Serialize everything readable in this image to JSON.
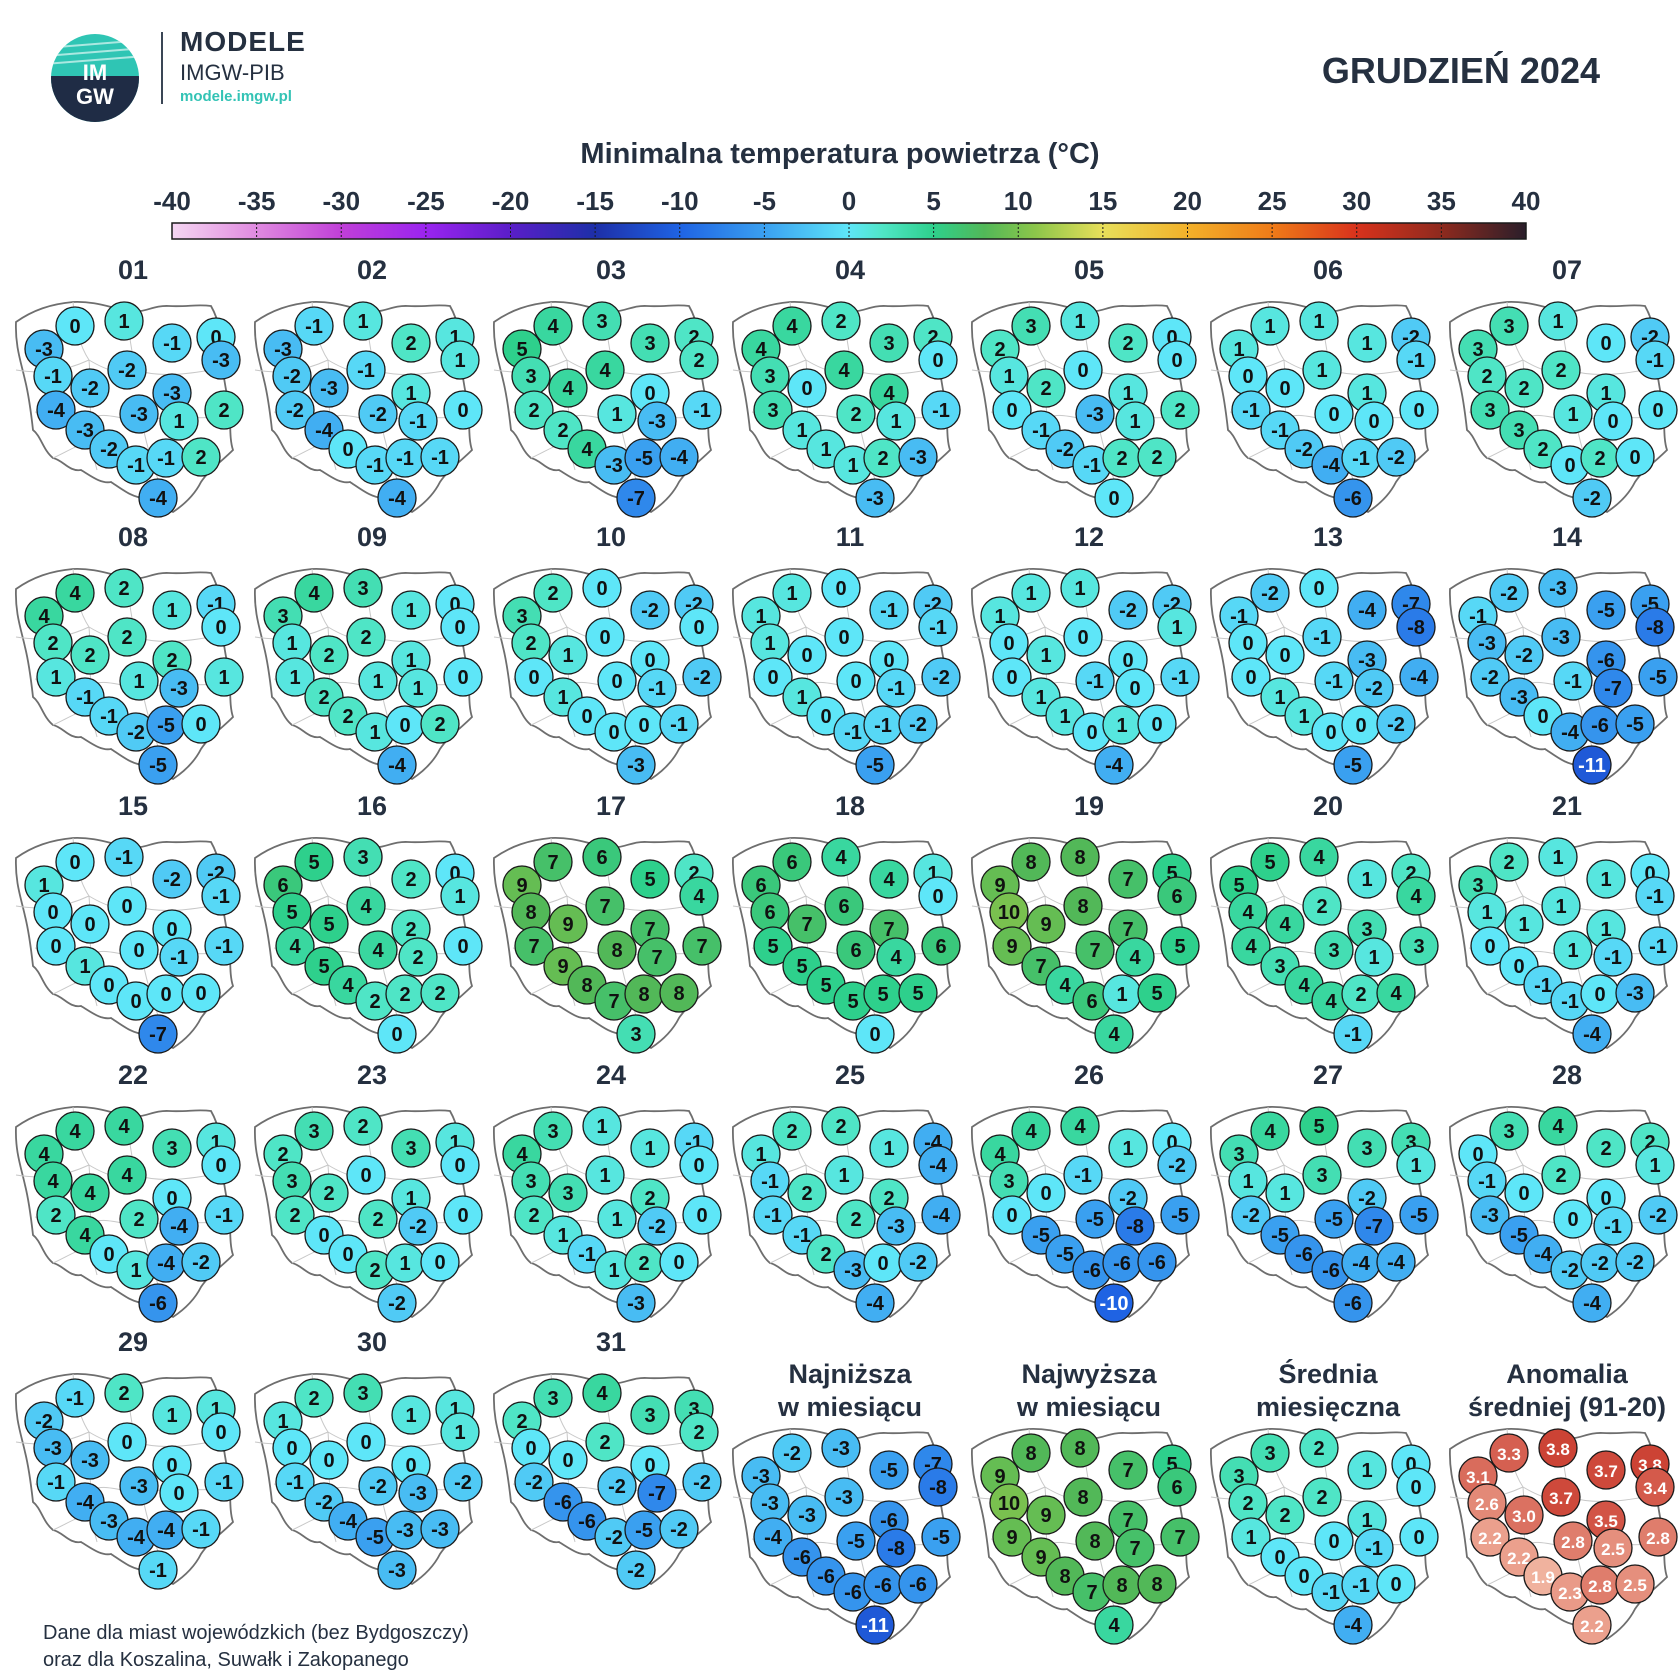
{
  "header": {
    "brand_title": "MODELE",
    "brand_sub": "IMGW-PIB",
    "brand_url": "modele.imgw.pl",
    "logo_text": "IMGW",
    "month": "GRUDZIEŃ 2024",
    "scale_title": "Minimalna temperatura powietrza (°C)"
  },
  "colorbar": {
    "ticks": [
      "-40",
      "-35",
      "-30",
      "-25",
      "-20",
      "-15",
      "-10",
      "-5",
      "0",
      "5",
      "10",
      "15",
      "20",
      "25",
      "30",
      "35",
      "40"
    ],
    "min": -40,
    "max": 40,
    "stops": [
      {
        "v": -40,
        "c": "#f5d6f2"
      },
      {
        "v": -35,
        "c": "#e08ae0"
      },
      {
        "v": -30,
        "c": "#c03fd8"
      },
      {
        "v": -25,
        "c": "#9a24ef"
      },
      {
        "v": -20,
        "c": "#5a1ec8"
      },
      {
        "v": -15,
        "c": "#1d2fa8"
      },
      {
        "v": -10,
        "c": "#1f63e3"
      },
      {
        "v": -5,
        "c": "#3aa0f0"
      },
      {
        "v": 0,
        "c": "#5ee6f8"
      },
      {
        "v": 2,
        "c": "#4fe5c6"
      },
      {
        "v": 5,
        "c": "#2ed08c"
      },
      {
        "v": 8,
        "c": "#52b858"
      },
      {
        "v": 11,
        "c": "#8cc64a"
      },
      {
        "v": 15,
        "c": "#e8df5a"
      },
      {
        "v": 20,
        "c": "#f2b12a"
      },
      {
        "v": 25,
        "c": "#ef7b18"
      },
      {
        "v": 30,
        "c": "#d8321c"
      },
      {
        "v": 35,
        "c": "#8e2a1e"
      },
      {
        "v": 40,
        "c": "#2a1e2a"
      }
    ]
  },
  "anomaly_colors": {
    "low": "#f8c9b4",
    "high": "#c8372a"
  },
  "maps": [
    {
      "label": "01",
      "values": [
        -3,
        0,
        1,
        -1,
        0,
        -3,
        -1,
        -2,
        -2,
        -3,
        -4,
        -3,
        -3,
        1,
        2,
        -2,
        -1,
        -1,
        2,
        -4
      ]
    },
    {
      "label": "02",
      "values": [
        -3,
        -1,
        1,
        2,
        1,
        1,
        -2,
        -3,
        -1,
        1,
        -2,
        -4,
        -2,
        -1,
        0,
        0,
        -1,
        -1,
        -1,
        -4
      ]
    },
    {
      "label": "03",
      "values": [
        5,
        4,
        3,
        3,
        2,
        2,
        3,
        4,
        4,
        0,
        2,
        2,
        1,
        -3,
        -1,
        4,
        -3,
        -5,
        -4,
        -7
      ]
    },
    {
      "label": "04",
      "values": [
        4,
        4,
        2,
        3,
        2,
        0,
        3,
        0,
        4,
        4,
        3,
        1,
        2,
        1,
        -1,
        1,
        1,
        2,
        -3,
        -3
      ]
    },
    {
      "label": "05",
      "values": [
        2,
        3,
        1,
        2,
        0,
        0,
        1,
        2,
        0,
        1,
        0,
        -1,
        -3,
        1,
        2,
        -2,
        -1,
        2,
        2,
        0
      ]
    },
    {
      "label": "06",
      "values": [
        1,
        1,
        1,
        1,
        -2,
        -1,
        0,
        0,
        1,
        1,
        -1,
        -1,
        0,
        0,
        0,
        -2,
        -4,
        -1,
        -2,
        -6
      ]
    },
    {
      "label": "07",
      "values": [
        3,
        3,
        1,
        0,
        -2,
        -1,
        2,
        2,
        2,
        1,
        3,
        3,
        1,
        0,
        0,
        2,
        0,
        2,
        0,
        -2
      ]
    },
    {
      "label": "08",
      "values": [
        4,
        4,
        2,
        1,
        -1,
        0,
        2,
        2,
        2,
        2,
        1,
        -1,
        1,
        -3,
        1,
        -1,
        -2,
        -5,
        0,
        -5
      ]
    },
    {
      "label": "09",
      "values": [
        3,
        4,
        3,
        1,
        0,
        0,
        1,
        2,
        2,
        1,
        1,
        2,
        1,
        1,
        0,
        2,
        1,
        0,
        2,
        -4
      ]
    },
    {
      "label": "10",
      "values": [
        3,
        2,
        0,
        -2,
        -2,
        0,
        2,
        1,
        0,
        0,
        0,
        1,
        0,
        -1,
        -2,
        0,
        0,
        0,
        -1,
        -3
      ]
    },
    {
      "label": "11",
      "values": [
        1,
        1,
        0,
        -1,
        -2,
        -1,
        1,
        0,
        0,
        0,
        0,
        1,
        0,
        -1,
        -2,
        0,
        -1,
        -1,
        -2,
        -5
      ]
    },
    {
      "label": "12",
      "values": [
        1,
        1,
        1,
        -2,
        -2,
        1,
        0,
        1,
        0,
        0,
        0,
        1,
        -1,
        0,
        -1,
        1,
        0,
        1,
        0,
        -4
      ]
    },
    {
      "label": "13",
      "values": [
        -1,
        -2,
        0,
        -4,
        -7,
        -8,
        0,
        0,
        -1,
        -3,
        0,
        1,
        -1,
        -2,
        -4,
        1,
        0,
        0,
        -2,
        -5
      ]
    },
    {
      "label": "14",
      "values": [
        -1,
        -2,
        -3,
        -5,
        -5,
        -8,
        -3,
        -2,
        -3,
        -6,
        -2,
        -3,
        -1,
        -7,
        -5,
        0,
        -4,
        -6,
        -5,
        -11
      ]
    },
    {
      "label": "15",
      "values": [
        1,
        0,
        -1,
        -2,
        -2,
        -1,
        0,
        0,
        0,
        0,
        0,
        1,
        0,
        -1,
        -1,
        0,
        0,
        0,
        0,
        -7
      ]
    },
    {
      "label": "16",
      "values": [
        6,
        5,
        3,
        2,
        0,
        1,
        5,
        5,
        4,
        2,
        4,
        5,
        4,
        2,
        0,
        4,
        2,
        2,
        2,
        0
      ]
    },
    {
      "label": "17",
      "values": [
        9,
        7,
        6,
        5,
        2,
        4,
        8,
        9,
        7,
        7,
        7,
        9,
        8,
        7,
        7,
        8,
        7,
        8,
        8,
        3
      ]
    },
    {
      "label": "18",
      "values": [
        6,
        6,
        4,
        4,
        1,
        0,
        6,
        7,
        6,
        7,
        5,
        5,
        6,
        4,
        6,
        5,
        5,
        5,
        5,
        0
      ]
    },
    {
      "label": "19",
      "values": [
        9,
        8,
        8,
        7,
        5,
        6,
        10,
        9,
        8,
        7,
        9,
        7,
        7,
        4,
        5,
        4,
        6,
        1,
        5,
        4
      ]
    },
    {
      "label": "20",
      "values": [
        5,
        5,
        4,
        1,
        2,
        4,
        4,
        4,
        2,
        3,
        4,
        3,
        3,
        1,
        3,
        4,
        4,
        2,
        4,
        -1
      ]
    },
    {
      "label": "21",
      "values": [
        3,
        2,
        1,
        1,
        0,
        -1,
        1,
        1,
        1,
        1,
        0,
        0,
        1,
        -1,
        -1,
        -1,
        -1,
        0,
        -3,
        -4
      ]
    },
    {
      "label": "22",
      "values": [
        4,
        4,
        4,
        3,
        1,
        0,
        4,
        4,
        4,
        0,
        2,
        4,
        2,
        -4,
        -1,
        0,
        1,
        -4,
        -2,
        -6
      ]
    },
    {
      "label": "23",
      "values": [
        2,
        3,
        2,
        3,
        1,
        0,
        3,
        2,
        0,
        1,
        2,
        0,
        2,
        -2,
        0,
        0,
        2,
        1,
        0,
        -2
      ]
    },
    {
      "label": "24",
      "values": [
        4,
        3,
        1,
        1,
        -1,
        0,
        3,
        3,
        1,
        2,
        2,
        1,
        1,
        -2,
        0,
        -1,
        1,
        2,
        0,
        -3
      ]
    },
    {
      "label": "25",
      "values": [
        1,
        2,
        2,
        1,
        -4,
        -4,
        -1,
        2,
        1,
        2,
        -1,
        -1,
        2,
        -3,
        -4,
        2,
        -3,
        0,
        -2,
        -4
      ]
    },
    {
      "label": "26",
      "values": [
        4,
        4,
        4,
        1,
        0,
        -2,
        3,
        0,
        -1,
        -2,
        0,
        -5,
        -5,
        -8,
        -5,
        -5,
        -6,
        -6,
        -6,
        -10
      ]
    },
    {
      "label": "27",
      "values": [
        3,
        4,
        5,
        3,
        3,
        1,
        1,
        1,
        3,
        -2,
        -2,
        -5,
        -5,
        -7,
        -5,
        -6,
        -6,
        -4,
        -4,
        -6
      ]
    },
    {
      "label": "28",
      "values": [
        0,
        3,
        4,
        2,
        2,
        1,
        -1,
        0,
        2,
        0,
        -3,
        -5,
        0,
        -1,
        -2,
        -4,
        -2,
        -2,
        -2,
        -4
      ]
    },
    {
      "label": "29",
      "values": [
        -2,
        -1,
        2,
        1,
        1,
        0,
        -3,
        -3,
        0,
        0,
        -1,
        -4,
        -3,
        0,
        -1,
        -3,
        -4,
        -4,
        -1,
        -1
      ]
    },
    {
      "label": "30",
      "values": [
        1,
        2,
        3,
        1,
        1,
        1,
        0,
        0,
        0,
        0,
        -1,
        -2,
        -2,
        -3,
        -2,
        -4,
        -5,
        -3,
        -3,
        -3
      ]
    },
    {
      "label": "31",
      "values": [
        2,
        3,
        4,
        3,
        3,
        2,
        0,
        0,
        2,
        0,
        -2,
        -6,
        -2,
        -7,
        -2,
        -6,
        -2,
        -5,
        -2,
        -2
      ]
    }
  ],
  "summaries": [
    {
      "title1": "Najniższa",
      "title2": "w miesiącu",
      "values": [
        -3,
        -2,
        -3,
        -5,
        -7,
        -8,
        -3,
        -3,
        -3,
        -6,
        -4,
        -6,
        -5,
        -8,
        -5,
        -6,
        -6,
        -6,
        -6,
        -11
      ]
    },
    {
      "title1": "Najwyższa",
      "title2": "w miesiącu",
      "values": [
        9,
        8,
        8,
        7,
        5,
        6,
        10,
        9,
        8,
        7,
        9,
        9,
        8,
        7,
        7,
        8,
        7,
        8,
        8,
        4
      ]
    },
    {
      "title1": "Średnia",
      "title2": "miesięczna",
      "values": [
        3,
        3,
        2,
        1,
        0,
        0,
        2,
        2,
        2,
        1,
        1,
        0,
        0,
        -1,
        0,
        0,
        -1,
        -1,
        0,
        -4
      ]
    },
    {
      "title1": "Anomalia",
      "title2": "średniej (91-20)",
      "anomaly": true,
      "values": [
        "3.1",
        "3.3",
        "3.8",
        "3.7",
        "3.8",
        "3.4",
        "2.6",
        "3.0",
        "3.7",
        "3.5",
        "2.2",
        "2.2",
        "2.8",
        "2.5",
        "2.8",
        "1.9",
        "2.3",
        "2.8",
        "2.5",
        "2.2"
      ]
    }
  ],
  "footnote": {
    "line1": "Dane dla miast wojewódzkich (bez Bydgoszczy)",
    "line2": "oraz dla Koszalina, Suwałk i Zakopanego"
  }
}
